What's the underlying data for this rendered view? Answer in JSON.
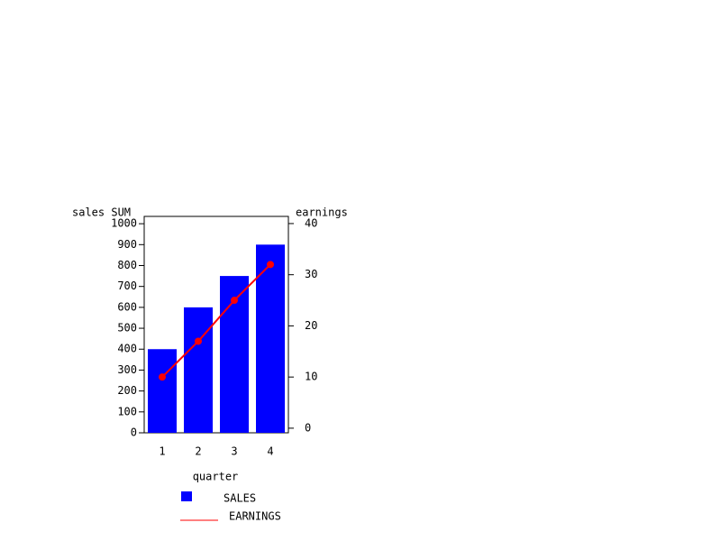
{
  "chart_data": {
    "type": "bar",
    "xlabel": "quarter",
    "ylabel": "sales SUM",
    "y2label": "earnings",
    "categories": [
      "1",
      "2",
      "3",
      "4"
    ],
    "series": [
      {
        "name": "SALES",
        "color": "#0000ff",
        "values": [
          400,
          600,
          750,
          900
        ]
      },
      {
        "name": "EARNINGS",
        "color": "#ff0000",
        "type": "line",
        "axis": "y2",
        "values": [
          10,
          17,
          25,
          32
        ]
      }
    ],
    "ylim": [
      0,
      1035
    ],
    "yticks": [
      0,
      100,
      200,
      300,
      400,
      500,
      600,
      700,
      800,
      900,
      1000
    ],
    "y2lim": [
      -0.9,
      41.4
    ],
    "y2ticks": [
      0,
      10,
      20,
      30,
      40
    ],
    "grid": false
  }
}
